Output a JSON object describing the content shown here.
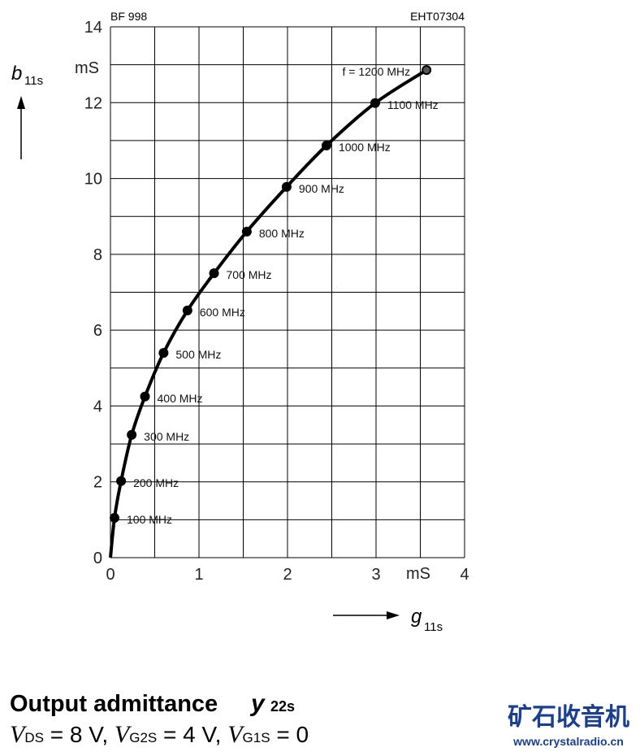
{
  "chart_data": {
    "type": "line",
    "device": "BF 998",
    "code": "EHT07304",
    "y_label": "b",
    "y_label_sub": "11s",
    "x_label": "g",
    "x_label_sub": "11s",
    "x_unit": "mS",
    "y_unit": "mS",
    "xlim": [
      0,
      4
    ],
    "xticks": [
      0,
      1,
      2,
      3,
      4
    ],
    "ylim": [
      0,
      14
    ],
    "yticks": [
      0,
      2,
      4,
      6,
      8,
      10,
      12,
      14
    ],
    "grid": true,
    "series": [
      {
        "color": "#000000",
        "x": [
          0,
          0.046,
          0.12,
          0.24,
          0.39,
          0.6,
          0.87,
          1.17,
          1.54,
          1.99,
          2.44,
          2.99,
          3.57
        ],
        "values": [
          0,
          1.05,
          2.02,
          3.24,
          4.25,
          5.4,
          6.52,
          7.5,
          8.6,
          9.78,
          10.87,
          11.99,
          12.86
        ],
        "labels": [
          null,
          "100 MHz",
          "200 MHz",
          "300 MHz",
          "400 MHz",
          "500 MHz",
          "600 MHz",
          "700 MHz",
          "800 MHz",
          "900 MHz",
          "1000 MHz",
          "1100 MHz",
          "f = 1200 MHz"
        ]
      }
    ]
  },
  "caption": {
    "title": "Output admittance",
    "symbol": "y",
    "symbol_sub": "22s",
    "conditions": [
      {
        "symbol": "V",
        "sub": "DS",
        "value": " = 8 V, "
      },
      {
        "symbol": "V",
        "sub": "G2S",
        "value": " = 4 V, "
      },
      {
        "symbol": "V",
        "sub": "G1S",
        "value": " = 0"
      }
    ]
  },
  "watermark": {
    "title": "矿石收音机",
    "url": "www.crystalradio.cn"
  }
}
